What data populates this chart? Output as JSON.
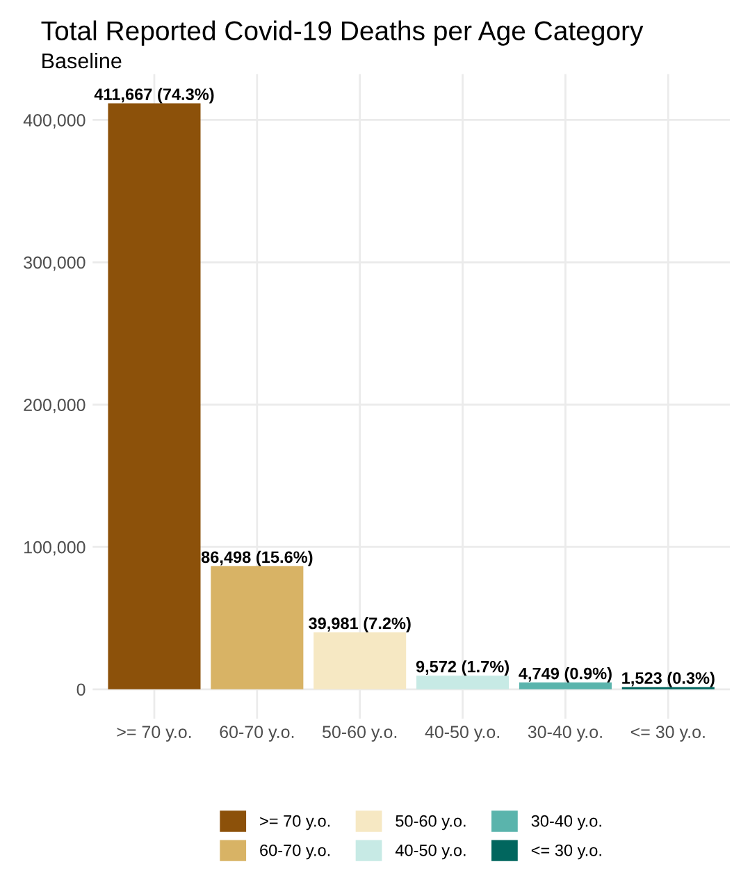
{
  "chart_data": {
    "type": "bar",
    "title": "Total Reported Covid-19 Deaths per Age Category",
    "subtitle": "Baseline",
    "categories": [
      ">= 70 y.o.",
      "60-70 y.o.",
      "50-60 y.o.",
      "40-50 y.o.",
      "30-40 y.o.",
      "<= 30 y.o."
    ],
    "series": [
      {
        "name": ">= 70 y.o.",
        "color": "#8c510a",
        "values": [
          411667,
          null,
          null,
          null,
          null,
          null
        ],
        "value_labels": [
          "411,667 (74.3%)",
          null,
          null,
          null,
          null,
          null
        ]
      },
      {
        "name": "60-70 y.o.",
        "color": "#d8b365",
        "values": [
          null,
          86498,
          null,
          null,
          null,
          null
        ],
        "value_labels": [
          null,
          "86,498 (15.6%)",
          null,
          null,
          null,
          null
        ]
      },
      {
        "name": "50-60 y.o.",
        "color": "#f6e8c3",
        "values": [
          null,
          null,
          39981,
          null,
          null,
          null
        ],
        "value_labels": [
          null,
          null,
          "39,981 (7.2%)",
          null,
          null,
          null
        ]
      },
      {
        "name": "40-50 y.o.",
        "color": "#c7eae5",
        "values": [
          null,
          null,
          null,
          9572,
          null,
          null
        ],
        "value_labels": [
          null,
          null,
          null,
          "9,572 (1.7%)",
          null,
          null
        ]
      },
      {
        "name": "30-40 y.o.",
        "color": "#5ab4ac",
        "values": [
          null,
          null,
          null,
          null,
          4749,
          null
        ],
        "value_labels": [
          null,
          null,
          null,
          null,
          "4,749 (0.9%)",
          null
        ]
      },
      {
        "name": "<= 30 y.o.",
        "color": "#01665e",
        "values": [
          null,
          null,
          null,
          null,
          null,
          1523
        ],
        "value_labels": [
          null,
          null,
          null,
          null,
          null,
          "1,523 (0.3%)"
        ]
      }
    ],
    "ylim": [
      -20583,
      432250
    ],
    "yticks": [
      {
        "value": 0,
        "label": "0"
      },
      {
        "value": 100000,
        "label": "100,000"
      },
      {
        "value": 200000,
        "label": "200,000"
      },
      {
        "value": 300000,
        "label": "300,000"
      },
      {
        "value": 400000,
        "label": "400,000"
      }
    ],
    "grid": true,
    "legend": "bottom"
  }
}
